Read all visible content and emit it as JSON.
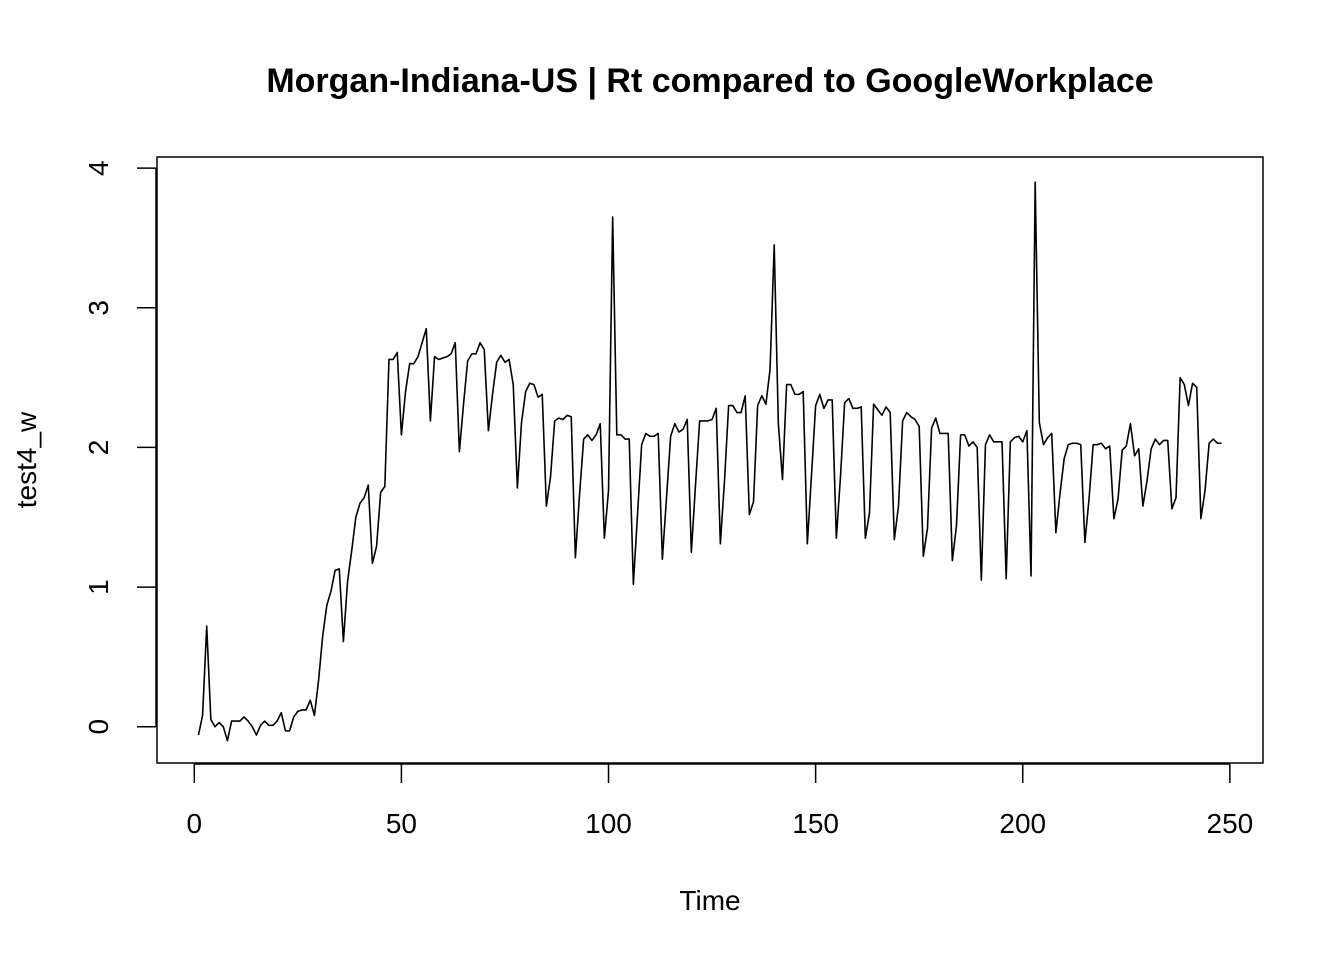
{
  "chart_data": {
    "type": "line",
    "title": "Morgan-Indiana-US | Rt compared to GoogleWorkplace",
    "xlabel": "Time",
    "ylabel": "test4_w",
    "xlim": [
      -9,
      258
    ],
    "ylim": [
      -0.26,
      4.08
    ],
    "x_ticks": [
      "0",
      "50",
      "100",
      "150",
      "200",
      "250"
    ],
    "y_ticks": [
      "0",
      "1",
      "2",
      "3",
      "4"
    ],
    "grid": false,
    "line_color": "#000000",
    "series": [
      {
        "x": [
          1,
          2,
          3,
          4,
          5,
          6,
          7,
          8,
          9,
          10,
          11,
          12,
          13,
          14,
          15,
          16,
          17,
          18,
          19,
          20,
          21,
          22,
          23,
          24,
          25,
          26,
          27,
          28,
          29,
          30,
          31,
          32,
          33,
          34,
          35,
          36,
          37,
          38,
          39,
          40,
          41,
          42,
          43,
          44,
          45,
          46,
          47,
          48,
          49,
          50,
          51,
          52,
          53,
          54,
          55,
          56,
          57,
          58,
          59,
          60,
          61,
          62,
          63,
          64,
          65,
          66,
          67,
          68,
          69,
          70,
          71,
          72,
          73,
          74,
          75,
          76,
          77,
          78,
          79,
          80,
          81,
          82,
          83,
          84,
          85,
          86,
          87,
          88,
          89,
          90,
          91,
          92,
          93,
          94,
          95,
          96,
          97,
          98,
          99,
          100,
          101,
          102,
          103,
          104,
          105,
          106,
          107,
          108,
          109,
          110,
          111,
          112,
          113,
          114,
          115,
          116,
          117,
          118,
          119,
          120,
          121,
          122,
          123,
          124,
          125,
          126,
          127,
          128,
          129,
          130,
          131,
          132,
          133,
          134,
          135,
          136,
          137,
          138,
          139,
          140,
          141,
          142,
          143,
          144,
          145,
          146,
          147,
          148,
          149,
          150,
          151,
          152,
          153,
          154,
          155,
          156,
          157,
          158,
          159,
          160,
          161,
          162,
          163,
          164,
          165,
          166,
          167,
          168,
          169,
          170,
          171,
          172,
          173,
          174,
          175,
          176,
          177,
          178,
          179,
          180,
          181,
          182,
          183,
          184,
          185,
          186,
          187,
          188,
          189,
          190,
          191,
          192,
          193,
          194,
          195,
          196,
          197,
          198,
          199,
          200,
          201,
          202,
          203,
          204,
          205,
          206,
          207,
          208,
          209,
          210,
          211,
          212,
          213,
          214,
          215,
          216,
          217,
          218,
          219,
          220,
          221,
          222,
          223,
          224,
          225,
          226,
          227,
          228,
          229,
          230,
          231,
          232,
          233,
          234,
          235,
          236,
          237,
          238,
          239,
          240,
          241,
          242,
          243,
          244,
          245,
          246,
          247,
          248
        ],
        "values": [
          -0.06,
          0.08,
          0.72,
          0.05,
          0.0,
          0.03,
          0.0,
          -0.1,
          0.04,
          0.04,
          0.04,
          0.07,
          0.04,
          0.0,
          -0.06,
          0.01,
          0.04,
          0.01,
          0.01,
          0.04,
          0.1,
          -0.03,
          -0.03,
          0.07,
          0.11,
          0.12,
          0.12,
          0.19,
          0.08,
          0.33,
          0.65,
          0.87,
          0.97,
          1.12,
          1.13,
          0.61,
          1.04,
          1.26,
          1.5,
          1.6,
          1.64,
          1.73,
          1.17,
          1.29,
          1.68,
          1.72,
          2.63,
          2.63,
          2.68,
          2.09,
          2.4,
          2.6,
          2.6,
          2.65,
          2.75,
          2.85,
          2.19,
          2.65,
          2.63,
          2.64,
          2.65,
          2.67,
          2.75,
          1.97,
          2.31,
          2.62,
          2.67,
          2.67,
          2.75,
          2.7,
          2.12,
          2.38,
          2.61,
          2.66,
          2.61,
          2.63,
          2.45,
          1.71,
          2.18,
          2.4,
          2.46,
          2.45,
          2.36,
          2.38,
          1.58,
          1.79,
          2.19,
          2.21,
          2.2,
          2.23,
          2.22,
          1.21,
          1.66,
          2.06,
          2.09,
          2.05,
          2.09,
          2.17,
          1.35,
          1.69,
          3.65,
          2.09,
          2.09,
          2.06,
          2.06,
          1.02,
          1.52,
          2.02,
          2.1,
          2.08,
          2.08,
          2.1,
          1.2,
          1.64,
          2.08,
          2.17,
          2.11,
          2.13,
          2.2,
          1.25,
          1.73,
          2.19,
          2.19,
          2.19,
          2.2,
          2.28,
          1.31,
          1.76,
          2.3,
          2.3,
          2.25,
          2.25,
          2.37,
          1.52,
          1.61,
          2.3,
          2.37,
          2.31,
          2.56,
          3.45,
          2.17,
          1.77,
          2.45,
          2.45,
          2.38,
          2.38,
          2.4,
          1.31,
          1.8,
          2.3,
          2.38,
          2.28,
          2.34,
          2.34,
          1.35,
          1.79,
          2.32,
          2.35,
          2.28,
          2.28,
          2.29,
          1.35,
          1.53,
          2.31,
          2.27,
          2.23,
          2.29,
          2.25,
          1.34,
          1.58,
          2.19,
          2.25,
          2.22,
          2.2,
          2.15,
          1.22,
          1.42,
          2.14,
          2.21,
          2.1,
          2.1,
          2.1,
          1.19,
          1.44,
          2.09,
          2.09,
          2.01,
          2.04,
          2.0,
          1.05,
          2.02,
          2.09,
          2.04,
          2.04,
          2.04,
          1.06,
          2.04,
          2.07,
          2.08,
          2.04,
          2.12,
          1.08,
          3.9,
          2.18,
          2.02,
          2.07,
          2.1,
          1.39,
          1.67,
          1.92,
          2.02,
          2.03,
          2.03,
          2.02,
          1.32,
          1.63,
          2.02,
          2.02,
          2.03,
          1.99,
          2.01,
          1.49,
          1.63,
          1.98,
          2.01,
          2.17,
          1.94,
          1.99,
          1.58,
          1.76,
          1.99,
          2.06,
          2.02,
          2.05,
          2.05,
          1.56,
          1.64,
          2.5,
          2.45,
          2.3,
          2.46,
          2.43,
          1.49,
          1.69,
          2.03,
          2.06,
          2.03,
          2.03
        ]
      }
    ]
  }
}
